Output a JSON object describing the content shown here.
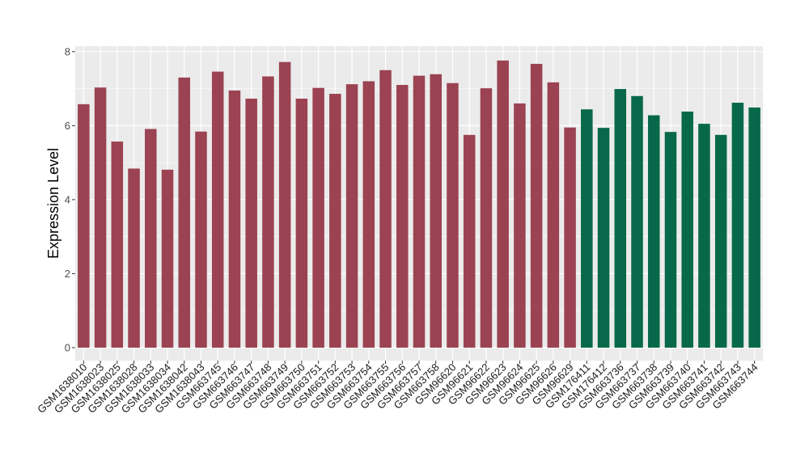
{
  "chart_data": {
    "type": "bar",
    "title": "",
    "xlabel": "",
    "ylabel": "Expression Level",
    "ylim": [
      0,
      8
    ],
    "yticks": [
      0,
      2,
      4,
      6,
      8
    ],
    "grid": true,
    "legend": "none",
    "panel_background": "#ebebeb",
    "grid_color": "#ffffff",
    "categories": [
      "GSM1638010",
      "GSM1638023",
      "GSM1638025",
      "GSM1638028",
      "GSM1638033",
      "GSM1638034",
      "GSM1638042",
      "GSM1638043",
      "GSM663745",
      "GSM663746",
      "GSM663747",
      "GSM663748",
      "GSM663749",
      "GSM663750",
      "GSM663751",
      "GSM663752",
      "GSM663753",
      "GSM663754",
      "GSM663755",
      "GSM663756",
      "GSM663757",
      "GSM663758",
      "GSM96620",
      "GSM96621",
      "GSM96622",
      "GSM96623",
      "GSM96624",
      "GSM96625",
      "GSM96626",
      "GSM96629",
      "GSM176411",
      "GSM176412",
      "GSM663736",
      "GSM663737",
      "GSM663738",
      "GSM663739",
      "GSM663740",
      "GSM663741",
      "GSM663742",
      "GSM663743",
      "GSM663744"
    ],
    "values": [
      6.58,
      7.03,
      5.57,
      4.84,
      5.91,
      4.81,
      7.3,
      5.84,
      7.46,
      6.95,
      6.73,
      7.33,
      7.72,
      6.73,
      7.02,
      6.86,
      7.12,
      7.2,
      7.5,
      7.1,
      7.35,
      7.39,
      7.15,
      5.75,
      7.01,
      7.76,
      6.6,
      7.67,
      7.17,
      5.95,
      6.44,
      5.94,
      6.99,
      6.8,
      6.28,
      5.83,
      6.38,
      6.05,
      5.75,
      6.62,
      6.49
    ],
    "groups": [
      "a",
      "a",
      "a",
      "a",
      "a",
      "a",
      "a",
      "a",
      "a",
      "a",
      "a",
      "a",
      "a",
      "a",
      "a",
      "a",
      "a",
      "a",
      "a",
      "a",
      "a",
      "a",
      "a",
      "a",
      "a",
      "a",
      "a",
      "a",
      "a",
      "a",
      "b",
      "b",
      "b",
      "b",
      "b",
      "b",
      "b",
      "b",
      "b",
      "b",
      "b"
    ],
    "group_colors": {
      "a": "#9b4352",
      "b": "#08694a"
    }
  }
}
